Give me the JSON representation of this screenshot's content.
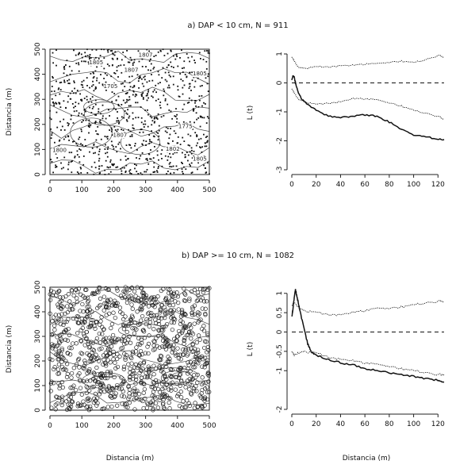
{
  "chart_data": [
    {
      "id": "a_map",
      "type": "scatter",
      "panel_title": "a)  DAP < 10 cm, N = 911",
      "xlabel": "",
      "ylabel": "Distancia (m)",
      "xlim": [
        0,
        500
      ],
      "ylim": [
        0,
        500
      ],
      "xticks": [
        0,
        100,
        200,
        300,
        400,
        500
      ],
      "yticks": [
        0,
        100,
        200,
        300,
        400,
        500
      ],
      "marker": "filled-dot",
      "n_points": 911,
      "contour_labels": [
        {
          "text": "1807",
          "x": 300,
          "y": 470
        },
        {
          "text": "1805",
          "x": 145,
          "y": 440
        },
        {
          "text": "1807",
          "x": 255,
          "y": 410
        },
        {
          "text": "1805",
          "x": 470,
          "y": 395
        },
        {
          "text": "1705",
          "x": 190,
          "y": 345
        },
        {
          "text": "1775",
          "x": 425,
          "y": 185
        },
        {
          "text": "1807",
          "x": 220,
          "y": 150
        },
        {
          "text": "1802",
          "x": 385,
          "y": 95
        },
        {
          "text": "1805",
          "x": 470,
          "y": 55
        },
        {
          "text": "1800",
          "x": 30,
          "y": 90
        }
      ]
    },
    {
      "id": "a_L",
      "type": "line",
      "xlabel": "",
      "ylabel": "L (t)",
      "xlim": [
        0,
        125
      ],
      "ylim": [
        -3,
        1
      ],
      "xticks": [
        0,
        20,
        40,
        60,
        80,
        100,
        120
      ],
      "yticks": [
        -3,
        -2,
        -1,
        0,
        1
      ],
      "reference_line": 0,
      "series": [
        {
          "role": "upper-envelope",
          "style": "dotted",
          "x": [
            0,
            2,
            5,
            10,
            20,
            30,
            40,
            50,
            60,
            70,
            80,
            90,
            100,
            110,
            120,
            125
          ],
          "y": [
            0.9,
            0.75,
            0.55,
            0.5,
            0.55,
            0.55,
            0.6,
            0.6,
            0.65,
            0.65,
            0.7,
            0.75,
            0.7,
            0.8,
            0.95,
            0.9
          ]
        },
        {
          "role": "lower-envelope",
          "style": "dotted",
          "x": [
            0,
            2,
            5,
            10,
            20,
            30,
            40,
            50,
            60,
            70,
            80,
            90,
            100,
            110,
            120,
            125
          ],
          "y": [
            -0.2,
            -0.35,
            -0.55,
            -0.65,
            -0.75,
            -0.7,
            -0.65,
            -0.55,
            -0.55,
            -0.6,
            -0.7,
            -0.8,
            -0.95,
            -1.05,
            -1.15,
            -1.25
          ]
        },
        {
          "role": "observed",
          "style": "solid",
          "x": [
            0,
            1,
            2,
            3,
            5,
            8,
            12,
            20,
            30,
            40,
            50,
            60,
            70,
            80,
            90,
            100,
            110,
            120,
            125
          ],
          "y": [
            0.1,
            0.25,
            0.2,
            0.0,
            -0.3,
            -0.55,
            -0.7,
            -0.95,
            -1.15,
            -1.2,
            -1.15,
            -1.1,
            -1.15,
            -1.35,
            -1.6,
            -1.8,
            -1.85,
            -1.95,
            -1.95
          ]
        }
      ]
    },
    {
      "id": "b_map",
      "type": "scatter",
      "panel_title": "b)  DAP >= 10 cm, N = 1082",
      "xlabel": "Distancia (m)",
      "ylabel": "Distancia (m)",
      "xlim": [
        0,
        500
      ],
      "ylim": [
        0,
        500
      ],
      "xticks": [
        0,
        100,
        200,
        300,
        400,
        500
      ],
      "yticks": [
        0,
        100,
        200,
        300,
        400,
        500
      ],
      "marker": "open-circle",
      "n_points": 1082,
      "contour_labels": []
    },
    {
      "id": "b_L",
      "type": "line",
      "xlabel": "Distancia (m)",
      "ylabel": "L (t)",
      "xlim": [
        0,
        125
      ],
      "ylim": [
        -2,
        1.2
      ],
      "xticks": [
        0,
        20,
        40,
        60,
        80,
        100,
        120
      ],
      "yticks": [
        -2.0,
        -1.0,
        -0.5,
        0.0,
        0.5,
        1.0
      ],
      "reference_line": 0,
      "series": [
        {
          "role": "upper-envelope",
          "style": "dotted",
          "x": [
            0,
            2,
            5,
            10,
            20,
            30,
            40,
            50,
            60,
            70,
            80,
            90,
            100,
            110,
            120,
            125
          ],
          "y": [
            0.7,
            0.75,
            0.65,
            0.55,
            0.5,
            0.45,
            0.45,
            0.5,
            0.55,
            0.6,
            0.6,
            0.65,
            0.7,
            0.75,
            0.8,
            0.8
          ]
        },
        {
          "role": "lower-envelope",
          "style": "dotted",
          "x": [
            0,
            2,
            5,
            10,
            20,
            30,
            40,
            50,
            60,
            70,
            80,
            90,
            100,
            110,
            120,
            125
          ],
          "y": [
            -0.5,
            -0.6,
            -0.55,
            -0.5,
            -0.55,
            -0.65,
            -0.7,
            -0.75,
            -0.8,
            -0.85,
            -0.9,
            -0.95,
            -1.0,
            -1.05,
            -1.1,
            -1.1
          ]
        },
        {
          "role": "observed",
          "style": "solid",
          "x": [
            0,
            1,
            2,
            3,
            4,
            5,
            7,
            10,
            13,
            16,
            20,
            30,
            40,
            50,
            60,
            70,
            80,
            90,
            100,
            110,
            120,
            125
          ],
          "y": [
            0.4,
            0.6,
            0.9,
            1.1,
            0.95,
            0.8,
            0.5,
            0.1,
            -0.3,
            -0.5,
            -0.6,
            -0.7,
            -0.8,
            -0.85,
            -0.95,
            -1.0,
            -1.05,
            -1.1,
            -1.15,
            -1.2,
            -1.25,
            -1.3
          ]
        }
      ]
    }
  ]
}
